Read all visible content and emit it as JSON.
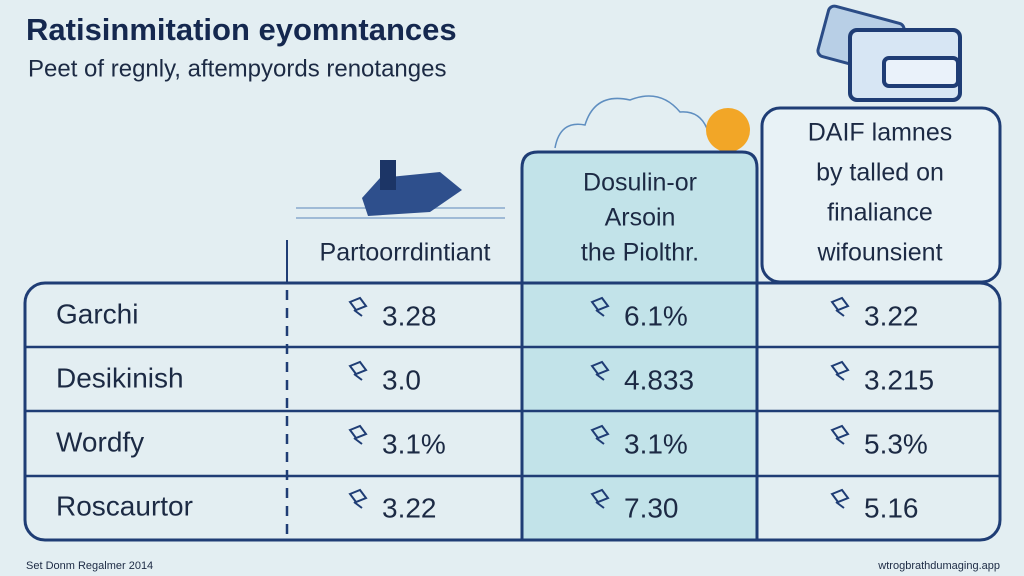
{
  "header": {
    "title": "Ratisinmitation eyomntances",
    "subtitle": "Peet of regnly, aftempyords renotanges"
  },
  "table": {
    "columns": [
      [
        "Partoorrdintiant"
      ],
      [
        "Dosulin-or",
        "Arsoin",
        "the Piolthr."
      ],
      [
        "DAIF lamnes",
        "by talled on",
        "finaliance",
        "wifounsient"
      ]
    ],
    "rows": [
      [
        "Garchi",
        "3.28",
        "6.1%",
        "3.22"
      ],
      [
        "Desikinish",
        "3.0",
        "4.833",
        "3.215"
      ],
      [
        "Wordfy",
        "3.1%",
        "3.1%",
        "5.3%"
      ],
      [
        "Roscaurtor",
        "3.22",
        "7.30",
        "5.16"
      ]
    ]
  },
  "footer": {
    "left": "Set Donm Regalmer 2014",
    "right": "wtrogbrathdumaging.app"
  }
}
